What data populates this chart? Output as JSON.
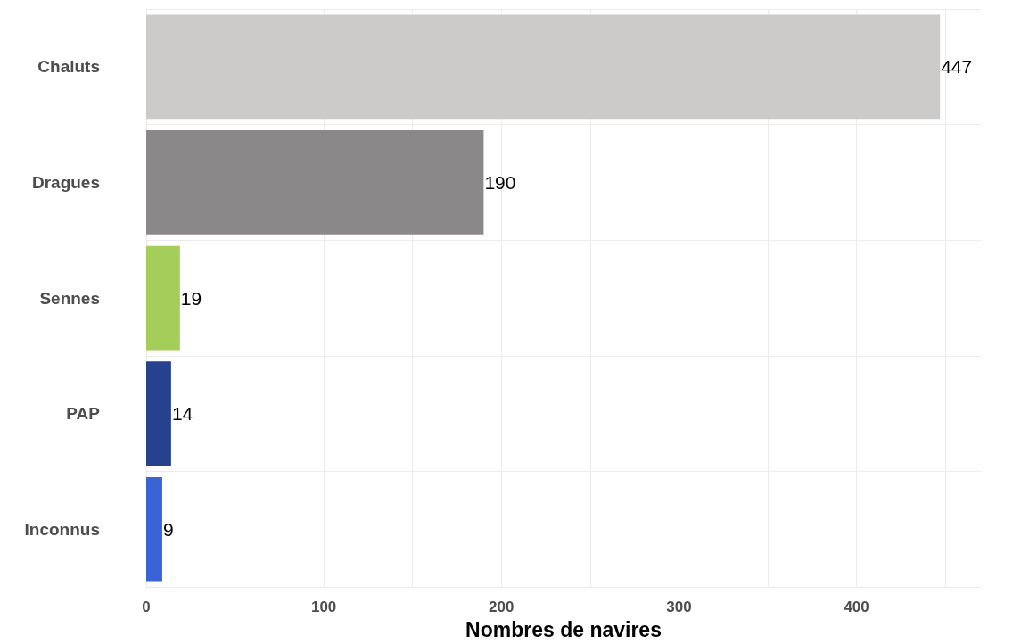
{
  "chart_data": {
    "type": "bar",
    "orientation": "horizontal",
    "xlabel": "Nombres de navires",
    "categories": [
      "Chaluts",
      "Dragues",
      "Sennes",
      "PAP",
      "Inconnus"
    ],
    "values": [
      447,
      190,
      19,
      14,
      9
    ],
    "colors": [
      "#cdcbca",
      "#8a8889",
      "#a5cd5a",
      "#26418e",
      "#3a63d6"
    ],
    "xlim": [
      0,
      470
    ],
    "xticks": [
      0,
      {
        "value": 50,
        "label": null
      },
      100,
      {
        "value": 150,
        "label": null
      },
      200,
      {
        "value": 250,
        "label": null
      },
      300,
      {
        "value": 350,
        "label": null
      },
      400,
      {
        "value": 450,
        "label": null
      }
    ],
    "grid": true,
    "data_labels": true
  }
}
